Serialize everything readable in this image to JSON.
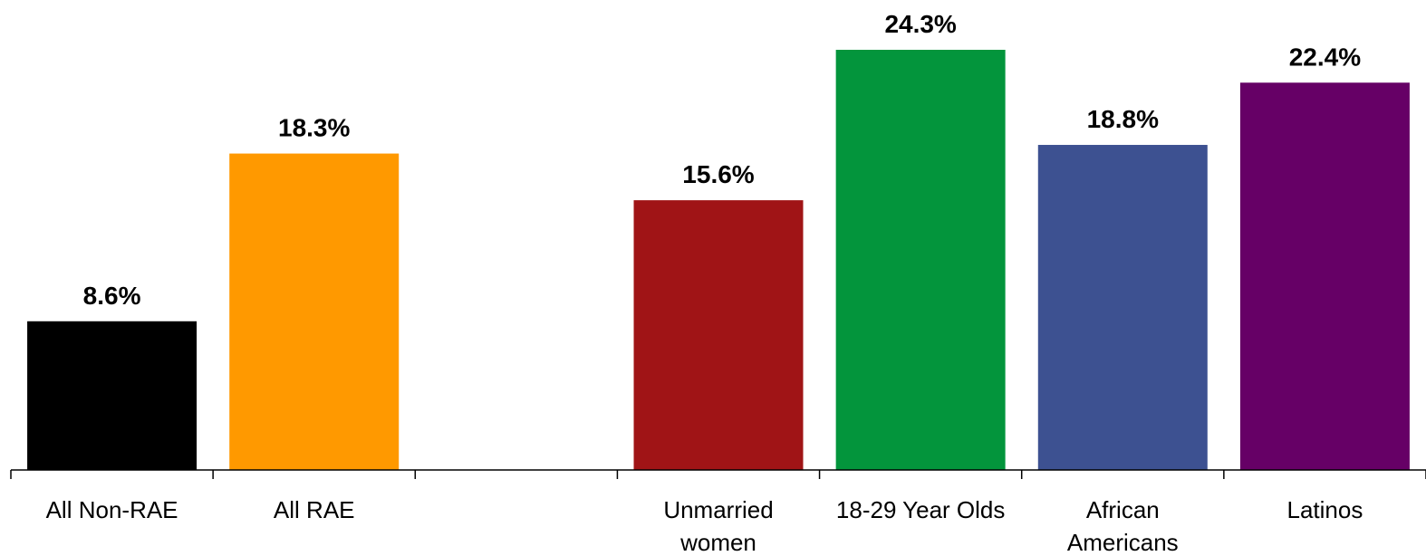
{
  "chart_data": {
    "type": "bar",
    "title": "",
    "xlabel": "",
    "ylabel": "",
    "ylim": [
      0,
      24.3
    ],
    "grid": false,
    "categories": [
      [
        "All Non-RAE"
      ],
      [
        "All RAE"
      ],
      [
        ""
      ],
      [
        "Unmarried",
        "women"
      ],
      [
        "18-29 Year Olds"
      ],
      [
        "African",
        "Americans"
      ],
      [
        "Latinos"
      ]
    ],
    "values": [
      8.6,
      18.3,
      null,
      15.6,
      24.3,
      18.8,
      22.4
    ],
    "value_labels": [
      "8.6%",
      "18.3%",
      "",
      "15.6%",
      "24.3%",
      "18.8%",
      "22.4%"
    ],
    "colors": [
      "#000000",
      "#FF9900",
      "#FFFFFF",
      "#A01416",
      "#03953C",
      "#3D5191",
      "#660066"
    ]
  }
}
